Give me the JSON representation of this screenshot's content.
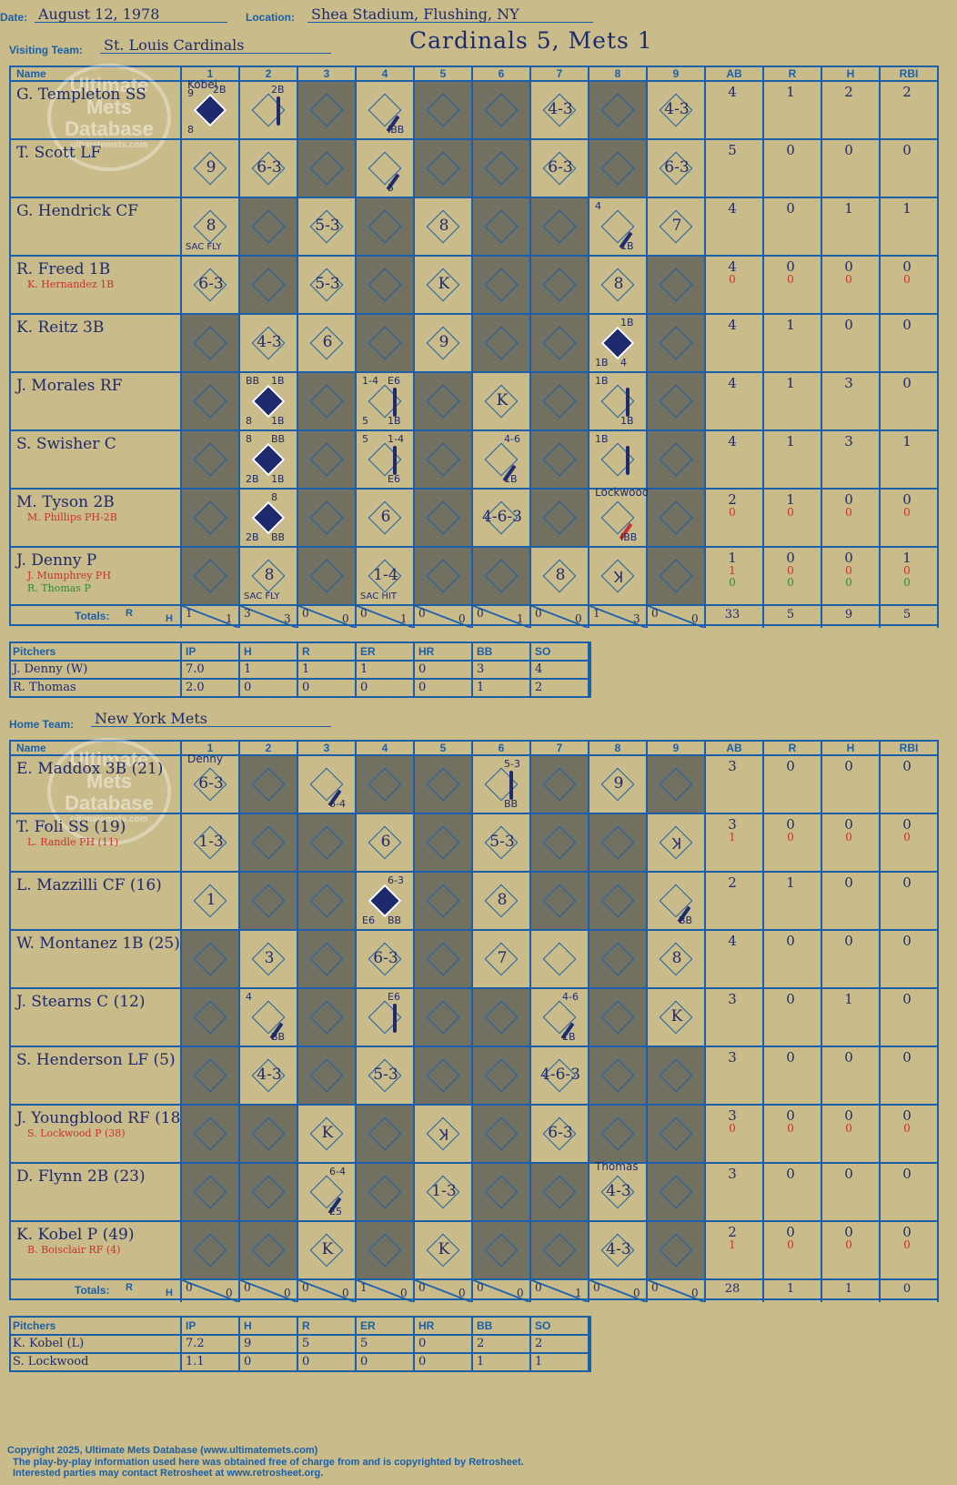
{
  "header": {
    "date_label": "Date:",
    "date": "August 12, 1978",
    "location_label": "Location:",
    "location": "Shea Stadium, Flushing, NY",
    "visiting_label": "Visiting Team:",
    "visiting_team": "St. Louis Cardinals",
    "home_label": "Home Team:",
    "home_team": "New York Mets",
    "result": "Cardinals 5, Mets 1"
  },
  "columns": {
    "name": "Name",
    "innings": [
      "1",
      "2",
      "3",
      "4",
      "5",
      "6",
      "7",
      "8",
      "9"
    ],
    "stats": [
      "AB",
      "R",
      "H",
      "RBI"
    ]
  },
  "totals_label": "Totals:",
  "totals_rh": {
    "r": "R",
    "h": "H"
  },
  "watermark": {
    "line1": "Ultimate",
    "line2": "Mets",
    "line3": "Database",
    "url": "ultimatemets.com"
  },
  "visitors": {
    "players": [
      {
        "name": "G. Templeton SS",
        "subs": [],
        "stats": [
          [
            "4",
            "1",
            "2",
            "2"
          ]
        ]
      },
      {
        "name": "T. Scott LF",
        "subs": [],
        "stats": [
          [
            "5",
            "0",
            "0",
            "0"
          ]
        ]
      },
      {
        "name": "G. Hendrick CF",
        "subs": [],
        "stats": [
          [
            "4",
            "0",
            "1",
            "1"
          ]
        ]
      },
      {
        "name": "R. Freed 1B",
        "subs": [
          {
            "name": "K. Hernandez 1B",
            "color": "red"
          }
        ],
        "stats": [
          [
            "4",
            "0",
            "0",
            "0"
          ],
          [
            "0",
            "0",
            "0",
            "0"
          ]
        ]
      },
      {
        "name": "K. Reitz 3B",
        "subs": [],
        "stats": [
          [
            "4",
            "1",
            "0",
            "0"
          ]
        ]
      },
      {
        "name": "J. Morales RF",
        "subs": [],
        "stats": [
          [
            "4",
            "1",
            "3",
            "0"
          ]
        ]
      },
      {
        "name": "S. Swisher C",
        "subs": [],
        "stats": [
          [
            "4",
            "1",
            "3",
            "1"
          ]
        ]
      },
      {
        "name": "M. Tyson 2B",
        "subs": [
          {
            "name": "M. Phillips PH-2B",
            "color": "red"
          }
        ],
        "stats": [
          [
            "2",
            "1",
            "0",
            "0"
          ],
          [
            "0",
            "0",
            "0",
            "0"
          ]
        ]
      },
      {
        "name": "J. Denny P",
        "subs": [
          {
            "name": "J. Mumphrey PH",
            "color": "red"
          },
          {
            "name": "R. Thomas P",
            "color": "green"
          }
        ],
        "stats": [
          [
            "1",
            "0",
            "0",
            "1"
          ],
          [
            "1",
            "0",
            "0",
            "0"
          ],
          [
            "0",
            "0",
            "0",
            "0"
          ]
        ]
      }
    ],
    "dark_cells": [
      [
        0,
        2
      ],
      [
        0,
        4
      ],
      [
        0,
        5
      ],
      [
        0,
        7
      ],
      [
        1,
        2
      ],
      [
        1,
        4
      ],
      [
        1,
        5
      ],
      [
        1,
        7
      ],
      [
        2,
        1
      ],
      [
        2,
        3
      ],
      [
        2,
        5
      ],
      [
        2,
        6
      ],
      [
        3,
        1
      ],
      [
        3,
        3
      ],
      [
        3,
        5
      ],
      [
        3,
        6
      ],
      [
        3,
        8
      ],
      [
        4,
        0
      ],
      [
        4,
        3
      ],
      [
        4,
        5
      ],
      [
        4,
        6
      ],
      [
        4,
        8
      ],
      [
        5,
        0
      ],
      [
        5,
        2
      ],
      [
        5,
        4
      ],
      [
        5,
        6
      ],
      [
        5,
        8
      ],
      [
        6,
        0
      ],
      [
        6,
        2
      ],
      [
        6,
        4
      ],
      [
        6,
        6
      ],
      [
        6,
        8
      ],
      [
        7,
        0
      ],
      [
        7,
        2
      ],
      [
        7,
        4
      ],
      [
        7,
        6
      ],
      [
        7,
        8
      ],
      [
        8,
        0
      ],
      [
        8,
        2
      ],
      [
        8,
        4
      ],
      [
        8,
        5
      ],
      [
        8,
        8
      ]
    ],
    "plays": [
      {
        "r": 0,
        "c": 0,
        "text": "",
        "run": true,
        "top": "9",
        "tr": "2B",
        "bl": "8",
        "note": "Kobel"
      },
      {
        "r": 0,
        "c": 1,
        "text": "",
        "tr": "2B",
        "path": "right"
      },
      {
        "r": 0,
        "c": 3,
        "text": "",
        "br": "IBB",
        "path": "single"
      },
      {
        "r": 0,
        "c": 6,
        "text": "4-3"
      },
      {
        "r": 0,
        "c": 8,
        "text": "4-3"
      },
      {
        "r": 1,
        "c": 0,
        "text": "9"
      },
      {
        "r": 1,
        "c": 1,
        "text": "6-3"
      },
      {
        "r": 1,
        "c": 3,
        "text": "",
        "br": "5",
        "path": "single"
      },
      {
        "r": 1,
        "c": 6,
        "text": "6-3"
      },
      {
        "r": 1,
        "c": 8,
        "text": "6-3"
      },
      {
        "r": 2,
        "c": 0,
        "text": "8",
        "bottom": "SAC FLY"
      },
      {
        "r": 2,
        "c": 2,
        "text": "5-3"
      },
      {
        "r": 2,
        "c": 4,
        "text": "8"
      },
      {
        "r": 2,
        "c": 7,
        "text": "",
        "tl": "4",
        "br": "1B",
        "path": "single"
      },
      {
        "r": 2,
        "c": 8,
        "text": "7"
      },
      {
        "r": 3,
        "c": 0,
        "text": "6-3"
      },
      {
        "r": 3,
        "c": 2,
        "text": "5-3"
      },
      {
        "r": 3,
        "c": 4,
        "text": "K"
      },
      {
        "r": 3,
        "c": 7,
        "text": "8"
      },
      {
        "r": 4,
        "c": 1,
        "text": "4-3"
      },
      {
        "r": 4,
        "c": 2,
        "text": "6"
      },
      {
        "r": 4,
        "c": 4,
        "text": "9"
      },
      {
        "r": 4,
        "c": 7,
        "text": "",
        "run": true,
        "tr": "1B",
        "bl": "1B",
        "br": "4"
      },
      {
        "r": 5,
        "c": 1,
        "text": "",
        "run": true,
        "tl": "BB",
        "tr": "1B",
        "bl": "8",
        "br": "1B"
      },
      {
        "r": 5,
        "c": 3,
        "text": "",
        "tl": "1-4",
        "tr": "E6",
        "bl": "5",
        "br": "1B",
        "path": "right"
      },
      {
        "r": 5,
        "c": 5,
        "text": "K"
      },
      {
        "r": 5,
        "c": 7,
        "text": "",
        "tl": "1B",
        "br": "1B",
        "path": "right"
      },
      {
        "r": 6,
        "c": 1,
        "text": "",
        "run": true,
        "tl": "8",
        "tr": "BB",
        "bl": "2B",
        "br": "1B"
      },
      {
        "r": 6,
        "c": 3,
        "text": "",
        "tl": "5",
        "tr": "1-4",
        "br": "E6",
        "path": "right"
      },
      {
        "r": 6,
        "c": 5,
        "text": "",
        "tr": "4-6",
        "br": "1B",
        "path": "single"
      },
      {
        "r": 6,
        "c": 7,
        "text": "",
        "tl": "1B",
        "path": "right"
      },
      {
        "r": 7,
        "c": 1,
        "text": "",
        "run": true,
        "tr": "8",
        "bl": "2B",
        "br": "BB"
      },
      {
        "r": 7,
        "c": 3,
        "text": "6"
      },
      {
        "r": 7,
        "c": 5,
        "text": "4-6-3"
      },
      {
        "r": 7,
        "c": 7,
        "text": "",
        "br": "IBB",
        "note": "Lockwood",
        "path": "single",
        "red": true
      },
      {
        "r": 8,
        "c": 1,
        "text": "8",
        "bottom": "SAC FLY"
      },
      {
        "r": 8,
        "c": 3,
        "text": "1-4",
        "bottom": "SAC HIT"
      },
      {
        "r": 8,
        "c": 6,
        "text": "8"
      },
      {
        "r": 8,
        "c": 7,
        "text": "Ʞ",
        "red": true
      }
    ],
    "totals": [
      [
        "1",
        "1"
      ],
      [
        "3",
        "3"
      ],
      [
        "0",
        "0"
      ],
      [
        "0",
        "1"
      ],
      [
        "0",
        "0"
      ],
      [
        "0",
        "1"
      ],
      [
        "0",
        "0"
      ],
      [
        "1",
        "3"
      ],
      [
        "0",
        "0"
      ]
    ],
    "stat_totals": [
      "33",
      "5",
      "9",
      "5"
    ]
  },
  "visitor_pitchers": {
    "headers": [
      "Pitchers",
      "IP",
      "H",
      "R",
      "ER",
      "HR",
      "BB",
      "SO"
    ],
    "rows": [
      [
        "J. Denny (W)",
        "7.0",
        "1",
        "1",
        "1",
        "0",
        "3",
        "4"
      ],
      [
        "R. Thomas",
        "2.0",
        "0",
        "0",
        "0",
        "0",
        "1",
        "2"
      ]
    ]
  },
  "home": {
    "players": [
      {
        "name": "E. Maddox 3B (21)",
        "subs": [],
        "stats": [
          [
            "3",
            "0",
            "0",
            "0"
          ]
        ]
      },
      {
        "name": "T. Foli SS (19)",
        "subs": [
          {
            "name": "L. Randle PH (11)",
            "color": "red"
          }
        ],
        "stats": [
          [
            "3",
            "0",
            "0",
            "0"
          ],
          [
            "1",
            "0",
            "0",
            "0"
          ]
        ]
      },
      {
        "name": "L. Mazzilli CF (16)",
        "subs": [],
        "stats": [
          [
            "2",
            "1",
            "0",
            "0"
          ]
        ]
      },
      {
        "name": "W. Montanez 1B (25)",
        "subs": [],
        "stats": [
          [
            "4",
            "0",
            "0",
            "0"
          ]
        ]
      },
      {
        "name": "J. Stearns C (12)",
        "subs": [],
        "stats": [
          [
            "3",
            "0",
            "1",
            "0"
          ]
        ]
      },
      {
        "name": "S. Henderson LF (5)",
        "subs": [],
        "stats": [
          [
            "3",
            "0",
            "0",
            "0"
          ]
        ]
      },
      {
        "name": "J. Youngblood RF (18)",
        "subs": [
          {
            "name": "S. Lockwood P (38)",
            "color": "red"
          }
        ],
        "stats": [
          [
            "3",
            "0",
            "0",
            "0"
          ],
          [
            "0",
            "0",
            "0",
            "0"
          ]
        ]
      },
      {
        "name": "D. Flynn 2B (23)",
        "subs": [],
        "stats": [
          [
            "3",
            "0",
            "0",
            "0"
          ]
        ]
      },
      {
        "name": "K. Kobel P (49)",
        "subs": [
          {
            "name": "B. Boisclair RF (4)",
            "color": "red"
          }
        ],
        "stats": [
          [
            "2",
            "0",
            "0",
            "0"
          ],
          [
            "1",
            "0",
            "0",
            "0"
          ]
        ]
      }
    ],
    "dark_cells": [
      [
        0,
        1
      ],
      [
        0,
        3
      ],
      [
        0,
        4
      ],
      [
        0,
        6
      ],
      [
        0,
        8
      ],
      [
        1,
        1
      ],
      [
        1,
        2
      ],
      [
        1,
        4
      ],
      [
        1,
        6
      ],
      [
        1,
        7
      ],
      [
        2,
        1
      ],
      [
        2,
        2
      ],
      [
        2,
        4
      ],
      [
        2,
        6
      ],
      [
        2,
        7
      ],
      [
        3,
        0
      ],
      [
        3,
        2
      ],
      [
        3,
        4
      ],
      [
        3,
        7
      ],
      [
        4,
        0
      ],
      [
        4,
        2
      ],
      [
        4,
        4
      ],
      [
        4,
        5
      ],
      [
        4,
        7
      ],
      [
        5,
        0
      ],
      [
        5,
        2
      ],
      [
        5,
        4
      ],
      [
        5,
        5
      ],
      [
        5,
        7
      ],
      [
        5,
        8
      ],
      [
        6,
        0
      ],
      [
        6,
        1
      ],
      [
        6,
        3
      ],
      [
        6,
        5
      ],
      [
        6,
        7
      ],
      [
        6,
        8
      ],
      [
        7,
        0
      ],
      [
        7,
        1
      ],
      [
        7,
        3
      ],
      [
        7,
        5
      ],
      [
        7,
        6
      ],
      [
        7,
        8
      ],
      [
        8,
        0
      ],
      [
        8,
        1
      ],
      [
        8,
        3
      ],
      [
        8,
        5
      ],
      [
        8,
        6
      ],
      [
        8,
        8
      ]
    ],
    "plays": [
      {
        "r": 0,
        "c": 0,
        "text": "6-3",
        "note": "Denny"
      },
      {
        "r": 0,
        "c": 2,
        "text": "",
        "br": "6-4",
        "path": "single"
      },
      {
        "r": 0,
        "c": 5,
        "text": "",
        "tr": "5-3",
        "br": "BB",
        "path": "right"
      },
      {
        "r": 0,
        "c": 7,
        "text": "9"
      },
      {
        "r": 1,
        "c": 0,
        "text": "1-3"
      },
      {
        "r": 1,
        "c": 3,
        "text": "6"
      },
      {
        "r": 1,
        "c": 5,
        "text": "5-3"
      },
      {
        "r": 1,
        "c": 8,
        "text": "Ʞ",
        "red": true
      },
      {
        "r": 2,
        "c": 0,
        "text": "1"
      },
      {
        "r": 2,
        "c": 3,
        "text": "",
        "run": true,
        "tr": "6-3",
        "bl": "E6",
        "br": "BB"
      },
      {
        "r": 2,
        "c": 5,
        "text": "8"
      },
      {
        "r": 2,
        "c": 8,
        "text": "",
        "br": "BB",
        "path": "single"
      },
      {
        "r": 3,
        "c": 1,
        "text": "3"
      },
      {
        "r": 3,
        "c": 3,
        "text": "6-3"
      },
      {
        "r": 3,
        "c": 5,
        "text": "7"
      },
      {
        "r": 3,
        "c": 8,
        "text": "8"
      },
      {
        "r": 4,
        "c": 1,
        "text": "",
        "tl": "4",
        "br": "BB",
        "path": "single"
      },
      {
        "r": 4,
        "c": 3,
        "text": "",
        "tr": "E6",
        "path": "right"
      },
      {
        "r": 4,
        "c": 6,
        "text": "",
        "tr": "4-6",
        "br": "1B",
        "path": "single"
      },
      {
        "r": 4,
        "c": 8,
        "text": "K"
      },
      {
        "r": 5,
        "c": 1,
        "text": "4-3"
      },
      {
        "r": 5,
        "c": 3,
        "text": "5-3"
      },
      {
        "r": 5,
        "c": 6,
        "text": "4-6-3"
      },
      {
        "r": 6,
        "c": 2,
        "text": "K"
      },
      {
        "r": 6,
        "c": 4,
        "text": "Ʞ"
      },
      {
        "r": 6,
        "c": 6,
        "text": "6-3"
      },
      {
        "r": 7,
        "c": 2,
        "text": "",
        "tr": "6-4",
        "br": "E5",
        "path": "single"
      },
      {
        "r": 7,
        "c": 4,
        "text": "1-3"
      },
      {
        "r": 7,
        "c": 7,
        "text": "4-3",
        "note": "Thomas"
      },
      {
        "r": 8,
        "c": 2,
        "text": "K"
      },
      {
        "r": 8,
        "c": 4,
        "text": "K"
      },
      {
        "r": 8,
        "c": 7,
        "text": "4-3",
        "red": true
      }
    ],
    "totals": [
      [
        "0",
        "0"
      ],
      [
        "0",
        "0"
      ],
      [
        "0",
        "0"
      ],
      [
        "1",
        "0"
      ],
      [
        "0",
        "0"
      ],
      [
        "0",
        "0"
      ],
      [
        "0",
        "1"
      ],
      [
        "0",
        "0"
      ],
      [
        "0",
        "0"
      ]
    ],
    "stat_totals": [
      "28",
      "1",
      "1",
      "0"
    ]
  },
  "home_pitchers": {
    "headers": [
      "Pitchers",
      "IP",
      "H",
      "R",
      "ER",
      "HR",
      "BB",
      "SO"
    ],
    "rows": [
      [
        "K. Kobel (L)",
        "7.2",
        "9",
        "5",
        "5",
        "0",
        "2",
        "2"
      ],
      [
        "S. Lockwood",
        "1.1",
        "0",
        "0",
        "0",
        "0",
        "1",
        "1"
      ]
    ]
  },
  "footer": {
    "line1": "Copyright 2025, Ultimate Mets Database (www.ultimatemets.com)",
    "line2": "The play-by-play information used here was obtained free of charge from and is copyrighted by Retrosheet.",
    "line3": "Interested parties may contact Retrosheet at www.retrosheet.org."
  },
  "colors": {
    "grid": "#1b5fa8",
    "ink": "#1e2a6e",
    "background": "#c9bc8a",
    "shade": "#727060",
    "red": "#c83232",
    "green": "#2a8a3a"
  }
}
